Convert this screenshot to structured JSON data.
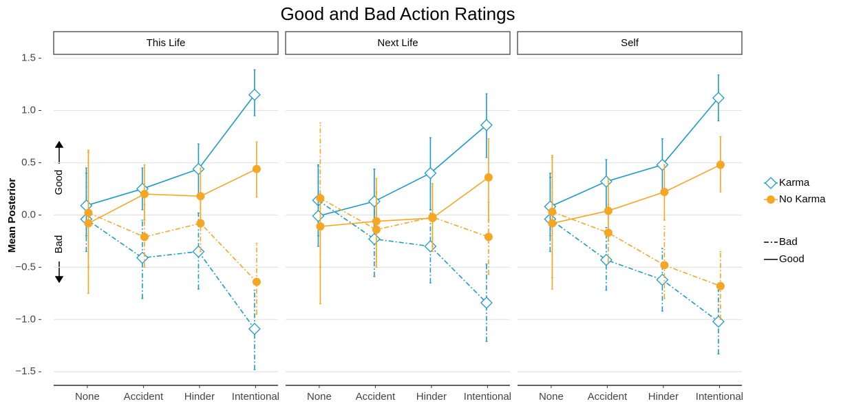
{
  "chart_data": {
    "type": "line",
    "title": "Good and Bad Action Ratings",
    "y_label": "Mean Posterior",
    "annotations": [
      "Good",
      "Bad"
    ],
    "categories": [
      "None",
      "Accident",
      "Hinder",
      "Intentional"
    ],
    "ylim": [
      -1.63,
      1.53
    ],
    "yticks": [
      {
        "value": -1.5,
        "label": "−1.5"
      },
      {
        "value": -1,
        "label": "−1.0"
      },
      {
        "value": -0.5,
        "label": "−0.5"
      },
      {
        "value": 0,
        "label": "0.0"
      },
      0.5,
      {
        "value": 1,
        "label": "1.0"
      },
      1.5
    ],
    "grid": true,
    "groups": [
      {
        "name": "Karma",
        "color": "#1a9bc9",
        "marker": "diamond"
      },
      {
        "name": "No Karma",
        "color": "#f5a623",
        "marker": "circle"
      }
    ],
    "linetypes": [
      {
        "name": "Bad",
        "dash": "7,3,2,3"
      },
      {
        "name": "Good",
        "dash": "none"
      }
    ],
    "panels": [
      {
        "title": "This Life",
        "series": [
          [
            {
              "values": [
                -0.04,
                -0.41,
                -0.35,
                -1.09
              ],
              "lower": [
                -0.35,
                -0.8,
                -0.71,
                -1.48
              ],
              "upper": [
                0.4,
                -0.05,
                0.02,
                -0.72
              ]
            },
            {
              "values": [
                0.09,
                0.25,
                0.44,
                1.15
              ],
              "lower": [
                -0.2,
                0.05,
                0.2,
                0.95
              ],
              "upper": [
                0.45,
                0.45,
                0.68,
                1.39
              ]
            }
          ],
          [
            {
              "values": [
                0.02,
                -0.21,
                -0.08,
                -0.64
              ],
              "lower": [
                -0.5,
                -0.5,
                -0.35,
                -0.95
              ],
              "upper": [
                0.62,
                0.1,
                0.2,
                -0.27
              ]
            },
            {
              "values": [
                -0.08,
                0.2,
                0.18,
                0.44
              ],
              "lower": [
                -0.75,
                -0.05,
                -0.1,
                0.17
              ],
              "upper": [
                0.6,
                0.48,
                0.45,
                0.7
              ]
            }
          ]
        ]
      },
      {
        "title": "Next Life",
        "series": [
          [
            {
              "values": [
                0.14,
                -0.23,
                -0.3,
                -0.84
              ],
              "lower": [
                -0.2,
                -0.59,
                -0.65,
                -1.21
              ],
              "upper": [
                0.48,
                0.1,
                0.05,
                -0.47
              ]
            },
            {
              "values": [
                -0.01,
                0.13,
                0.4,
                0.86
              ],
              "lower": [
                -0.3,
                -0.15,
                0.05,
                0.55
              ],
              "upper": [
                0.47,
                0.44,
                0.74,
                1.16
              ]
            }
          ],
          [
            {
              "values": [
                0.16,
                -0.14,
                -0.02,
                -0.21
              ],
              "lower": [
                -0.5,
                -0.5,
                -0.35,
                -0.57
              ],
              "upper": [
                0.88,
                0.22,
                0.3,
                0.12
              ]
            },
            {
              "values": [
                -0.11,
                -0.06,
                -0.03,
                0.36
              ],
              "lower": [
                -0.85,
                -0.45,
                -0.3,
                -0.05
              ],
              "upper": [
                0.2,
                0.35,
                0.3,
                0.73
              ]
            }
          ]
        ]
      },
      {
        "title": "Self",
        "series": [
          [
            {
              "values": [
                -0.04,
                -0.43,
                -0.62,
                -1.02
              ],
              "lower": [
                -0.35,
                -0.72,
                -0.92,
                -1.33
              ],
              "upper": [
                0.36,
                -0.12,
                -0.32,
                -0.72
              ]
            },
            {
              "values": [
                0.08,
                0.32,
                0.48,
                1.12
              ],
              "lower": [
                -0.2,
                0.05,
                0.22,
                0.9
              ],
              "upper": [
                0.4,
                0.53,
                0.73,
                1.34
              ]
            }
          ],
          [
            {
              "values": [
                0.03,
                -0.17,
                -0.48,
                -0.68
              ],
              "lower": [
                -0.6,
                -0.45,
                -0.8,
                -1.0
              ],
              "upper": [
                0.57,
                0.1,
                -0.11,
                -0.35
              ]
            },
            {
              "values": [
                -0.08,
                0.04,
                0.22,
                0.48
              ],
              "lower": [
                -0.71,
                -0.25,
                -0.05,
                0.22
              ],
              "upper": [
                0.55,
                0.35,
                0.48,
                0.75
              ]
            }
          ]
        ]
      }
    ]
  }
}
